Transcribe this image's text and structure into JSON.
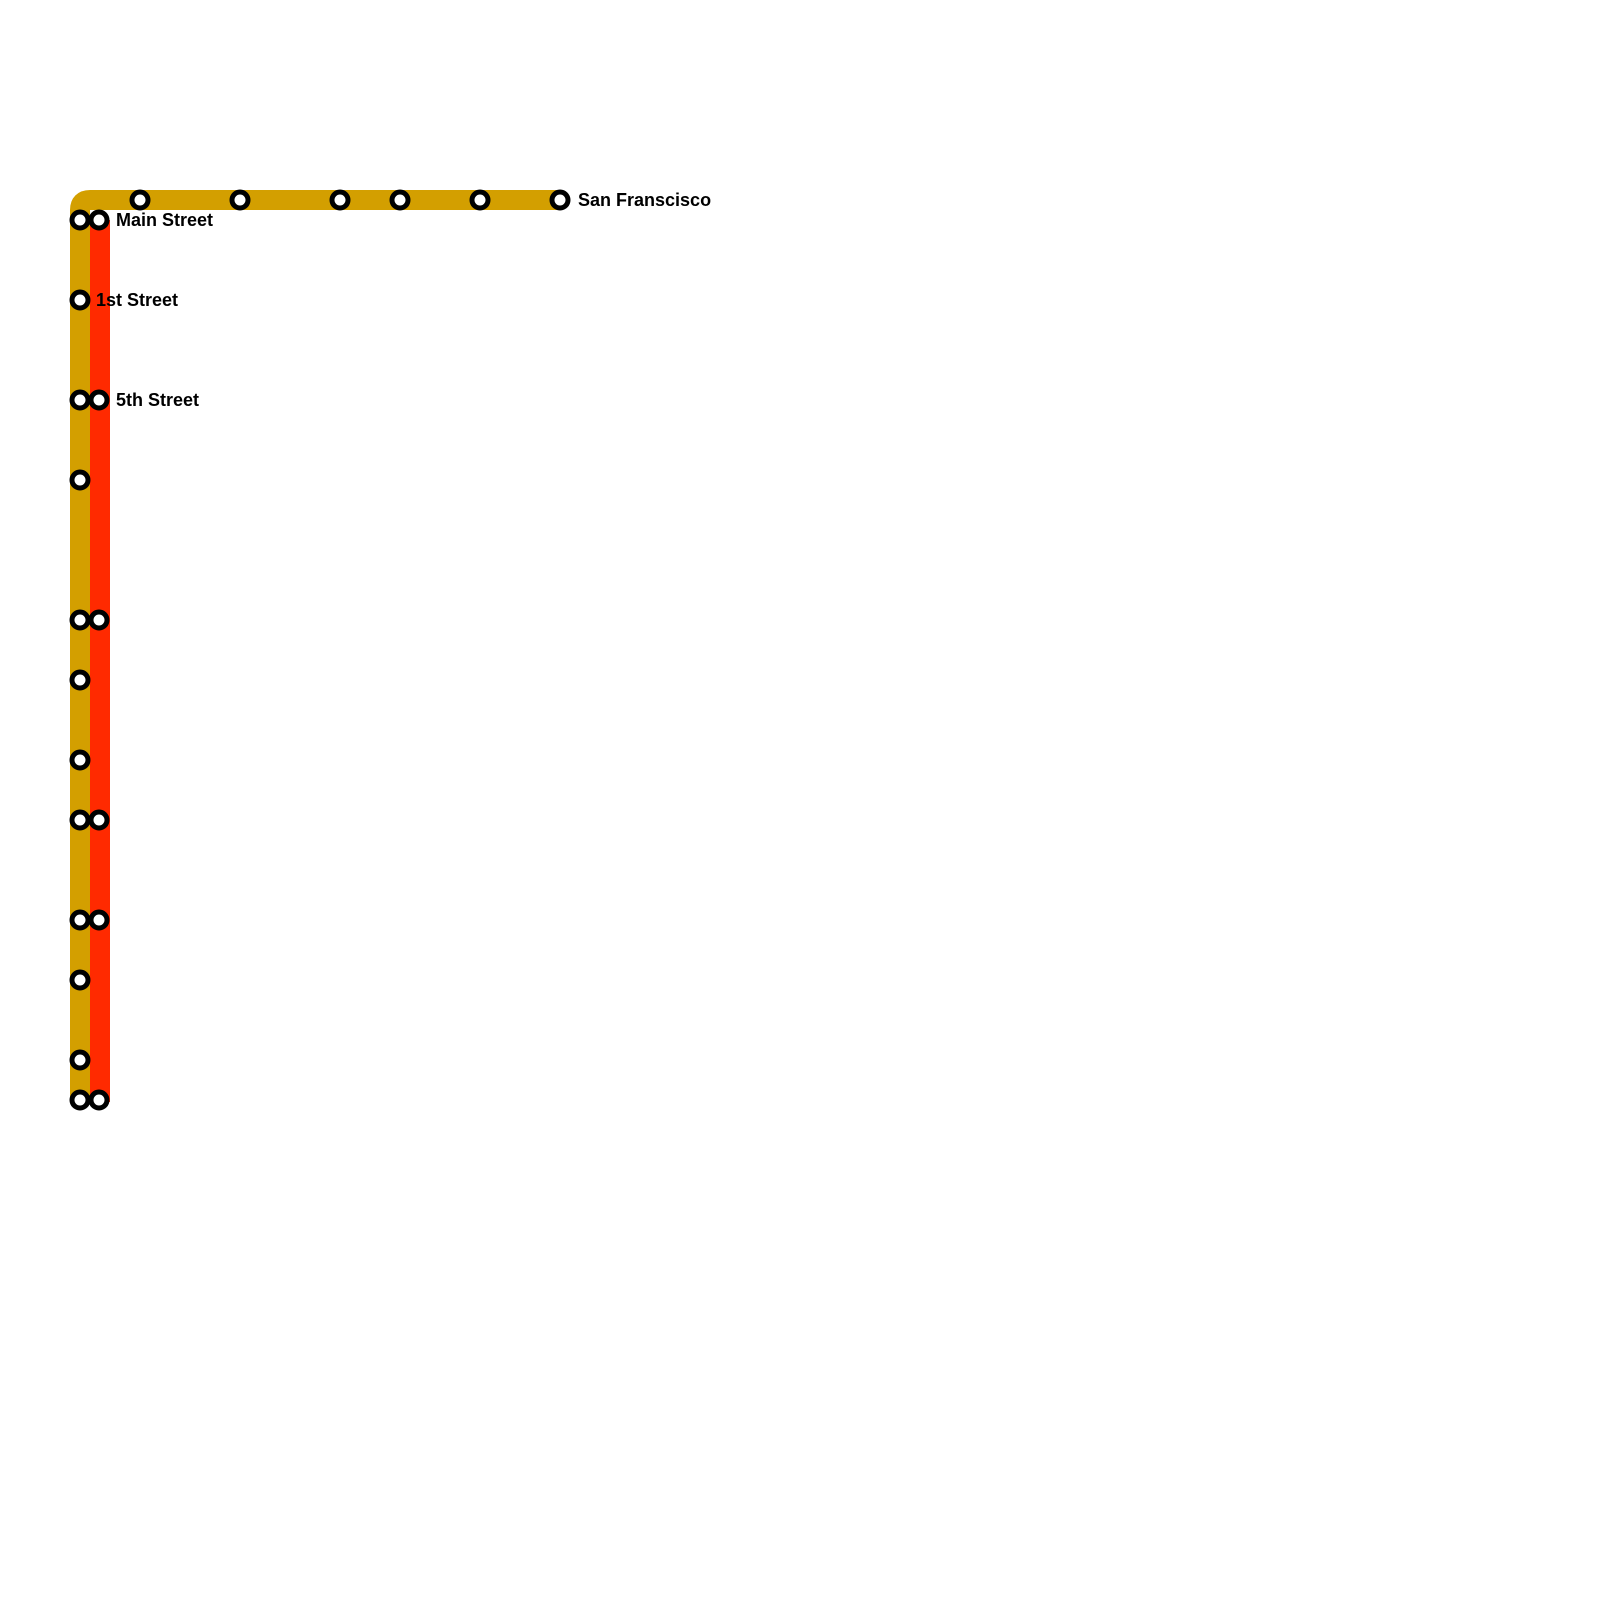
{
  "lines": [
    {
      "name": "gold-line",
      "color": "#D39F00"
    },
    {
      "name": "red-line",
      "color": "#FF2A00"
    }
  ],
  "labels": {
    "san_francisco": "San Franscisco",
    "main_street": "Main Street",
    "first_street": "1st Street",
    "fifth_street": "5th Street"
  }
}
